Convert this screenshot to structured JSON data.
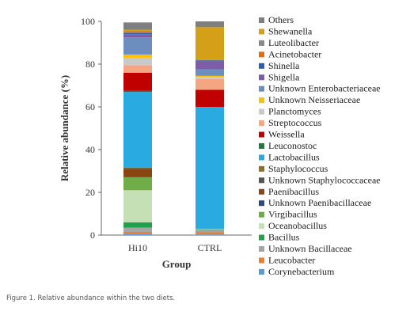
{
  "caption": "Figure 1. Relative abundance within the two diets.",
  "chart_data": {
    "type": "bar",
    "stacked": true,
    "xlabel": "Group",
    "ylabel": "Relative abundance (%)",
    "ylim": [
      0,
      100
    ],
    "yticks": [
      0,
      20,
      40,
      60,
      80,
      100
    ],
    "categories": [
      "Hi10",
      "CTRL"
    ],
    "legend_position": "right",
    "series": [
      {
        "name": "Corynebacterium",
        "color": "#5B9BD5",
        "values": [
          0.5,
          0.3
        ]
      },
      {
        "name": "Leucobacter",
        "color": "#ED7D31",
        "values": [
          1.0,
          1.0
        ]
      },
      {
        "name": "Unknown Bacillaceae",
        "color": "#A5A5A5",
        "values": [
          2.0,
          0.7
        ]
      },
      {
        "name": "Bacillus",
        "color": "#1FA34A",
        "values": [
          2.5,
          0.3
        ]
      },
      {
        "name": "Oceanobacillus",
        "color": "#C5E0B4",
        "values": [
          15.0,
          0.3
        ]
      },
      {
        "name": "Virgibacillus",
        "color": "#70AD47",
        "values": [
          6.0,
          0.4
        ]
      },
      {
        "name": "Unknown Paenibacillaceae",
        "color": "#2E4A7A",
        "values": [
          0.3,
          0.0
        ]
      },
      {
        "name": "Paenibacillus",
        "color": "#8B4513",
        "values": [
          3.5,
          0.0
        ]
      },
      {
        "name": "Unknown Staphylococcaceae",
        "color": "#555555",
        "values": [
          0.5,
          0.0
        ]
      },
      {
        "name": "Staphylococcus",
        "color": "#8B6F2F",
        "values": [
          0.2,
          0.0
        ]
      },
      {
        "name": "Lactobacillus",
        "color": "#29ABE2",
        "values": [
          35.5,
          57.0
        ]
      },
      {
        "name": "Leuconostoc",
        "color": "#1E7A3A",
        "values": [
          0.5,
          0.0
        ]
      },
      {
        "name": "Weissella",
        "color": "#C00000",
        "values": [
          8.5,
          8.0
        ]
      },
      {
        "name": "Streptococcus",
        "color": "#F4A582",
        "values": [
          3.5,
          5.0
        ]
      },
      {
        "name": "Planctomyces",
        "color": "#C9C9C9",
        "values": [
          3.5,
          1.0
        ]
      },
      {
        "name": "Unknown Neisseriaceae",
        "color": "#FFC000",
        "values": [
          1.5,
          0.5
        ]
      },
      {
        "name": "Unknown Enterobacteriaceae",
        "color": "#6C8EBF",
        "values": [
          8.0,
          3.0
        ]
      },
      {
        "name": "Shigella",
        "color": "#7B5EA7",
        "values": [
          1.5,
          4.0
        ]
      },
      {
        "name": "Shinella",
        "color": "#2B5EA7",
        "values": [
          0.5,
          0.3
        ]
      },
      {
        "name": "Acinetobacter",
        "color": "#E46C0A",
        "values": [
          0.5,
          0.0
        ]
      },
      {
        "name": "Luteolibacter",
        "color": "#888888",
        "values": [
          0.5,
          0.0
        ]
      },
      {
        "name": "Shewanella",
        "color": "#D4A017",
        "values": [
          0.5,
          15.5
        ]
      },
      {
        "name": "Others",
        "color": "#7F7F7F",
        "values": [
          3.5,
          2.7
        ]
      }
    ]
  }
}
